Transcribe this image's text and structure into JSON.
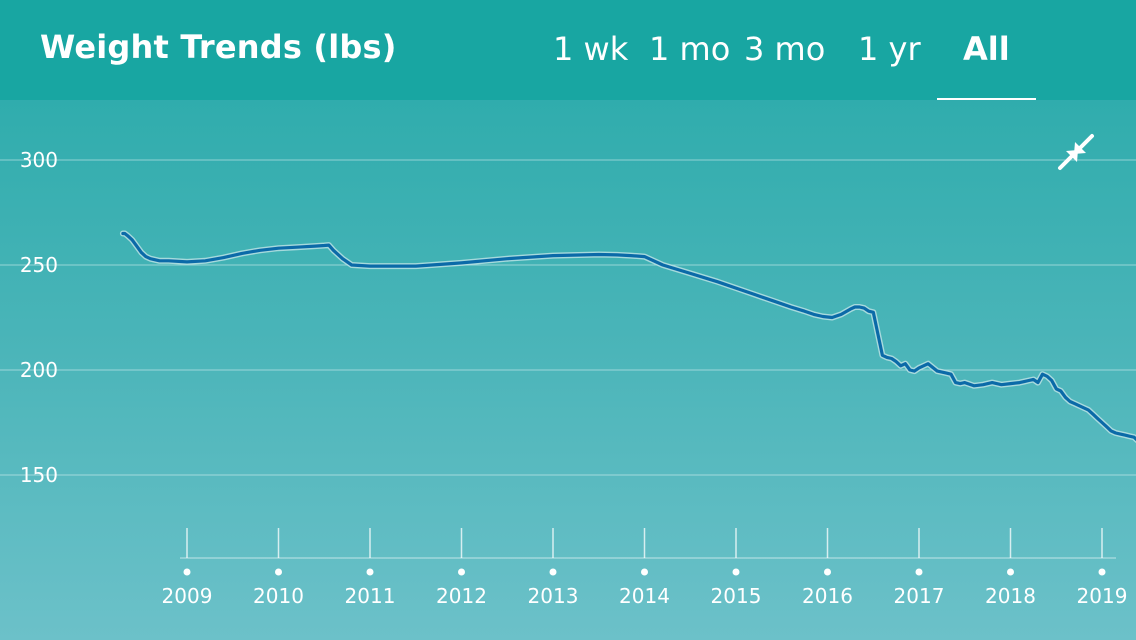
{
  "header": {
    "title": "Weight Trends (lbs)",
    "tabs": [
      {
        "label": "1 wk",
        "active": false
      },
      {
        "label": "1 mo",
        "active": false
      },
      {
        "label": "3 mo",
        "active": false
      },
      {
        "label": "1 yr",
        "active": false
      },
      {
        "label": "All",
        "active": true
      }
    ]
  },
  "collapse_icon": "collapse-arrows-icon",
  "colors": {
    "header": "#18a6a2",
    "trend_line": "#0b6aa8",
    "raw_line": "#bfe3e6"
  },
  "chart_data": {
    "type": "line",
    "title": "Weight Trends (lbs)",
    "xlabel": "",
    "ylabel": "",
    "ylim": [
      150,
      300
    ],
    "yticks": [
      150,
      200,
      250,
      300
    ],
    "xticks": [
      "2009",
      "2010",
      "2011",
      "2012",
      "2013",
      "2014",
      "2015",
      "2016",
      "2017",
      "2018",
      "2019"
    ],
    "xlim": [
      2008.3,
      2019.47
    ],
    "grid": true,
    "series": [
      {
        "x": [
          2008.3,
          2008.32,
          2008.35,
          2008.4,
          2008.45,
          2008.5,
          2008.55,
          2008.6,
          2008.7,
          2008.8,
          2009.0,
          2009.2,
          2009.4,
          2009.6,
          2009.8,
          2010.0,
          2010.2,
          2010.4,
          2010.5,
          2010.55,
          2010.6,
          2010.7,
          2010.8,
          2011.0,
          2011.5,
          2012.0,
          2012.5,
          2013.0,
          2013.5,
          2013.7,
          2013.85,
          2014.0,
          2014.2,
          2014.5,
          2014.8,
          2015.0,
          2015.2,
          2015.4,
          2015.6,
          2015.75,
          2015.85,
          2015.95,
          2016.05,
          2016.15,
          2016.25,
          2016.3,
          2016.35,
          2016.4,
          2016.45,
          2016.5,
          2016.6,
          2016.65,
          2016.7,
          2016.75,
          2016.8,
          2016.85,
          2016.9,
          2016.95,
          2017.0,
          2017.05,
          2017.1,
          2017.2,
          2017.25,
          2017.3,
          2017.35,
          2017.4,
          2017.45,
          2017.5,
          2017.6,
          2017.7,
          2017.8,
          2017.9,
          2018.0,
          2018.1,
          2018.15,
          2018.2,
          2018.25,
          2018.3,
          2018.35,
          2018.4,
          2018.45,
          2018.5,
          2018.55,
          2018.6,
          2018.65,
          2018.7,
          2018.75,
          2018.8,
          2018.85,
          2018.9,
          2018.95,
          2019.0,
          2019.05,
          2019.1,
          2019.15,
          2019.2,
          2019.25,
          2019.3,
          2019.35,
          2019.4,
          2019.45
        ],
        "y": [
          265,
          265,
          264,
          262,
          259,
          256,
          254,
          253,
          252,
          252,
          251.5,
          252,
          253.5,
          255.5,
          257,
          258,
          258.5,
          259,
          259.3,
          259.5,
          257,
          253,
          250,
          249.5,
          249.5,
          251,
          253,
          254.5,
          255,
          254.8,
          254.5,
          254,
          250,
          246,
          242,
          239,
          236,
          233,
          230,
          228,
          226.5,
          225.5,
          225,
          226.5,
          229,
          230,
          230,
          229.5,
          228,
          227.5,
          207,
          206,
          205.5,
          204,
          202,
          203,
          200,
          199.5,
          201,
          202,
          203,
          199.5,
          199,
          198.5,
          198,
          194,
          193.5,
          194,
          192.5,
          193,
          194,
          193,
          193.5,
          194,
          194.5,
          195,
          195.5,
          194,
          198,
          197,
          195,
          191,
          190,
          187,
          185,
          184,
          183,
          182,
          181,
          179,
          177,
          175,
          173,
          171,
          170,
          169.5,
          169,
          168.5,
          168,
          166,
          163
        ]
      }
    ]
  }
}
